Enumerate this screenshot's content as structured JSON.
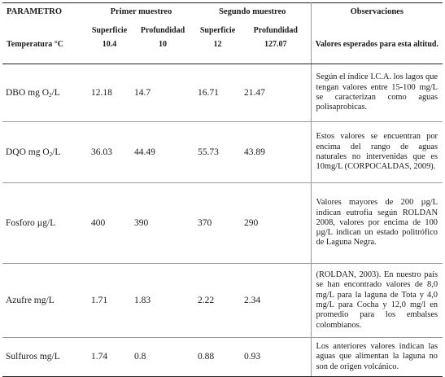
{
  "header": {
    "parametro": "PARAMETRO",
    "temperatura": "Temperatura °C",
    "primer_muestreo": "Primer muestreo",
    "segundo_muestreo": "Segundo muestreo",
    "superficie": "Superficie",
    "profundidad": "Profundidad",
    "observaciones": "Observaciones",
    "temp_values": [
      "10.4",
      "10",
      "12",
      "127.07"
    ],
    "obs_subtitle": "Valores esperados para esta altitud."
  },
  "rows": [
    {
      "param_prefix": "DBO mg O",
      "param_sub": "2",
      "param_suffix": "/L",
      "values": [
        "12.18",
        "14.7",
        "16.71",
        "21.47"
      ],
      "obs": "Según el índice I.C.A. los lagos que tengan valores entre 15-100 mg/L se caracterizan como aguas polisaprobicas."
    },
    {
      "param_prefix": "DQO mg O",
      "param_sub": "2",
      "param_suffix": "/L",
      "values": [
        "36.03",
        "44.49",
        "55.73",
        "43.89"
      ],
      "obs": "Estos valores se encuentran por encima del rango de aguas naturales no intervenidas que es 10mg/L (CORPOCALDAS, 2009)."
    },
    {
      "param_prefix": "Fosforo µg/L",
      "param_sub": "",
      "param_suffix": "",
      "values": [
        "400",
        "390",
        "370",
        "290"
      ],
      "obs": "Valores mayores de 200 µg/L indican eutrofia según ROLDAN 2008, valores por encima de 100 µg/L indican un estado politrófico de Laguna Negra."
    },
    {
      "param_prefix": "Azufre mg/L",
      "param_sub": "",
      "param_suffix": "",
      "values": [
        "1.71",
        "1.83",
        "2.22",
        "2.34"
      ],
      "obs": "(ROLDAN, 2003). En nuestro país se han encontrado valores de 8,0 mg/L para la laguna de Tota y 4,0 mg/L para Cocha y 12,0 mg/l en promedio para los embalses colombianos."
    },
    {
      "param_prefix": "Sulfuros mg/L",
      "param_sub": "",
      "param_suffix": "",
      "values": [
        "1.74",
        "0.8",
        "0.88",
        "0.93"
      ],
      "obs": "Los anteriores valores indican las aguas que alimentan la laguna no son de origen volcánico."
    }
  ]
}
